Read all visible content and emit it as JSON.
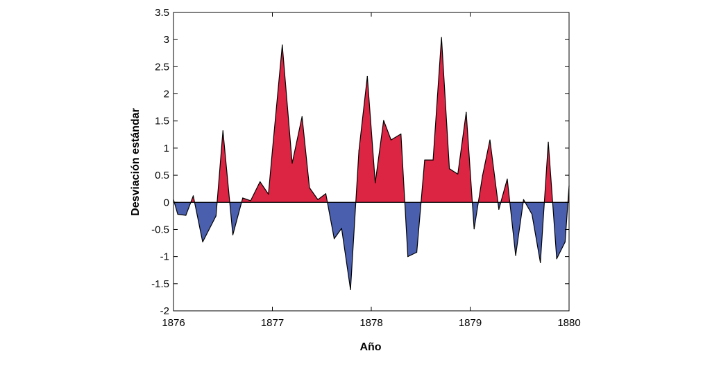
{
  "chart_data": {
    "type": "area",
    "title": "",
    "xlabel": "Año",
    "ylabel": "Desviación estándar",
    "xlim": [
      1876,
      1880
    ],
    "ylim": [
      -2,
      3.5
    ],
    "xticks": [
      "1876",
      "1877",
      "1878",
      "1879",
      "1880"
    ],
    "yticks": [
      "-2",
      "-1.5",
      "-1",
      "-0.5",
      "0",
      "0.5",
      "1",
      "1.5",
      "2",
      "2.5",
      "3",
      "3.5"
    ],
    "grid": false,
    "legend": "none",
    "positive_color": "#dc2543",
    "negative_color": "#4a5fae",
    "series": [
      {
        "x": [
          1876.0,
          1876.043,
          1876.125,
          1876.2,
          1876.295,
          1876.43,
          1876.5,
          1876.6,
          1876.7,
          1876.78,
          1876.875,
          1876.96,
          1877.0,
          1877.1,
          1877.2,
          1877.3,
          1877.375,
          1877.46,
          1877.54,
          1877.625,
          1877.7,
          1877.79,
          1877.875,
          1877.96,
          1878.04,
          1878.125,
          1878.2,
          1878.3,
          1878.37,
          1878.46,
          1878.54,
          1878.625,
          1878.71,
          1878.79,
          1878.875,
          1878.96,
          1879.04,
          1879.125,
          1879.2,
          1879.29,
          1879.375,
          1879.46,
          1879.54,
          1879.625,
          1879.71,
          1879.79,
          1879.875,
          1879.96,
          1880.0
        ],
        "y": [
          0.05,
          -0.22,
          -0.24,
          0.12,
          -0.73,
          -0.25,
          1.32,
          -0.6,
          0.08,
          0.03,
          0.38,
          0.15,
          0.95,
          2.9,
          0.72,
          1.58,
          0.27,
          0.05,
          0.16,
          -0.67,
          -0.48,
          -1.61,
          0.95,
          2.32,
          0.36,
          1.51,
          1.15,
          1.26,
          -1.0,
          -0.92,
          0.78,
          0.78,
          3.04,
          0.62,
          0.52,
          1.66,
          -0.49,
          0.49,
          1.15,
          -0.13,
          0.43,
          -0.98,
          0.05,
          -0.22,
          -1.11,
          1.11,
          -1.04,
          -0.73,
          0.3
        ]
      }
    ]
  }
}
